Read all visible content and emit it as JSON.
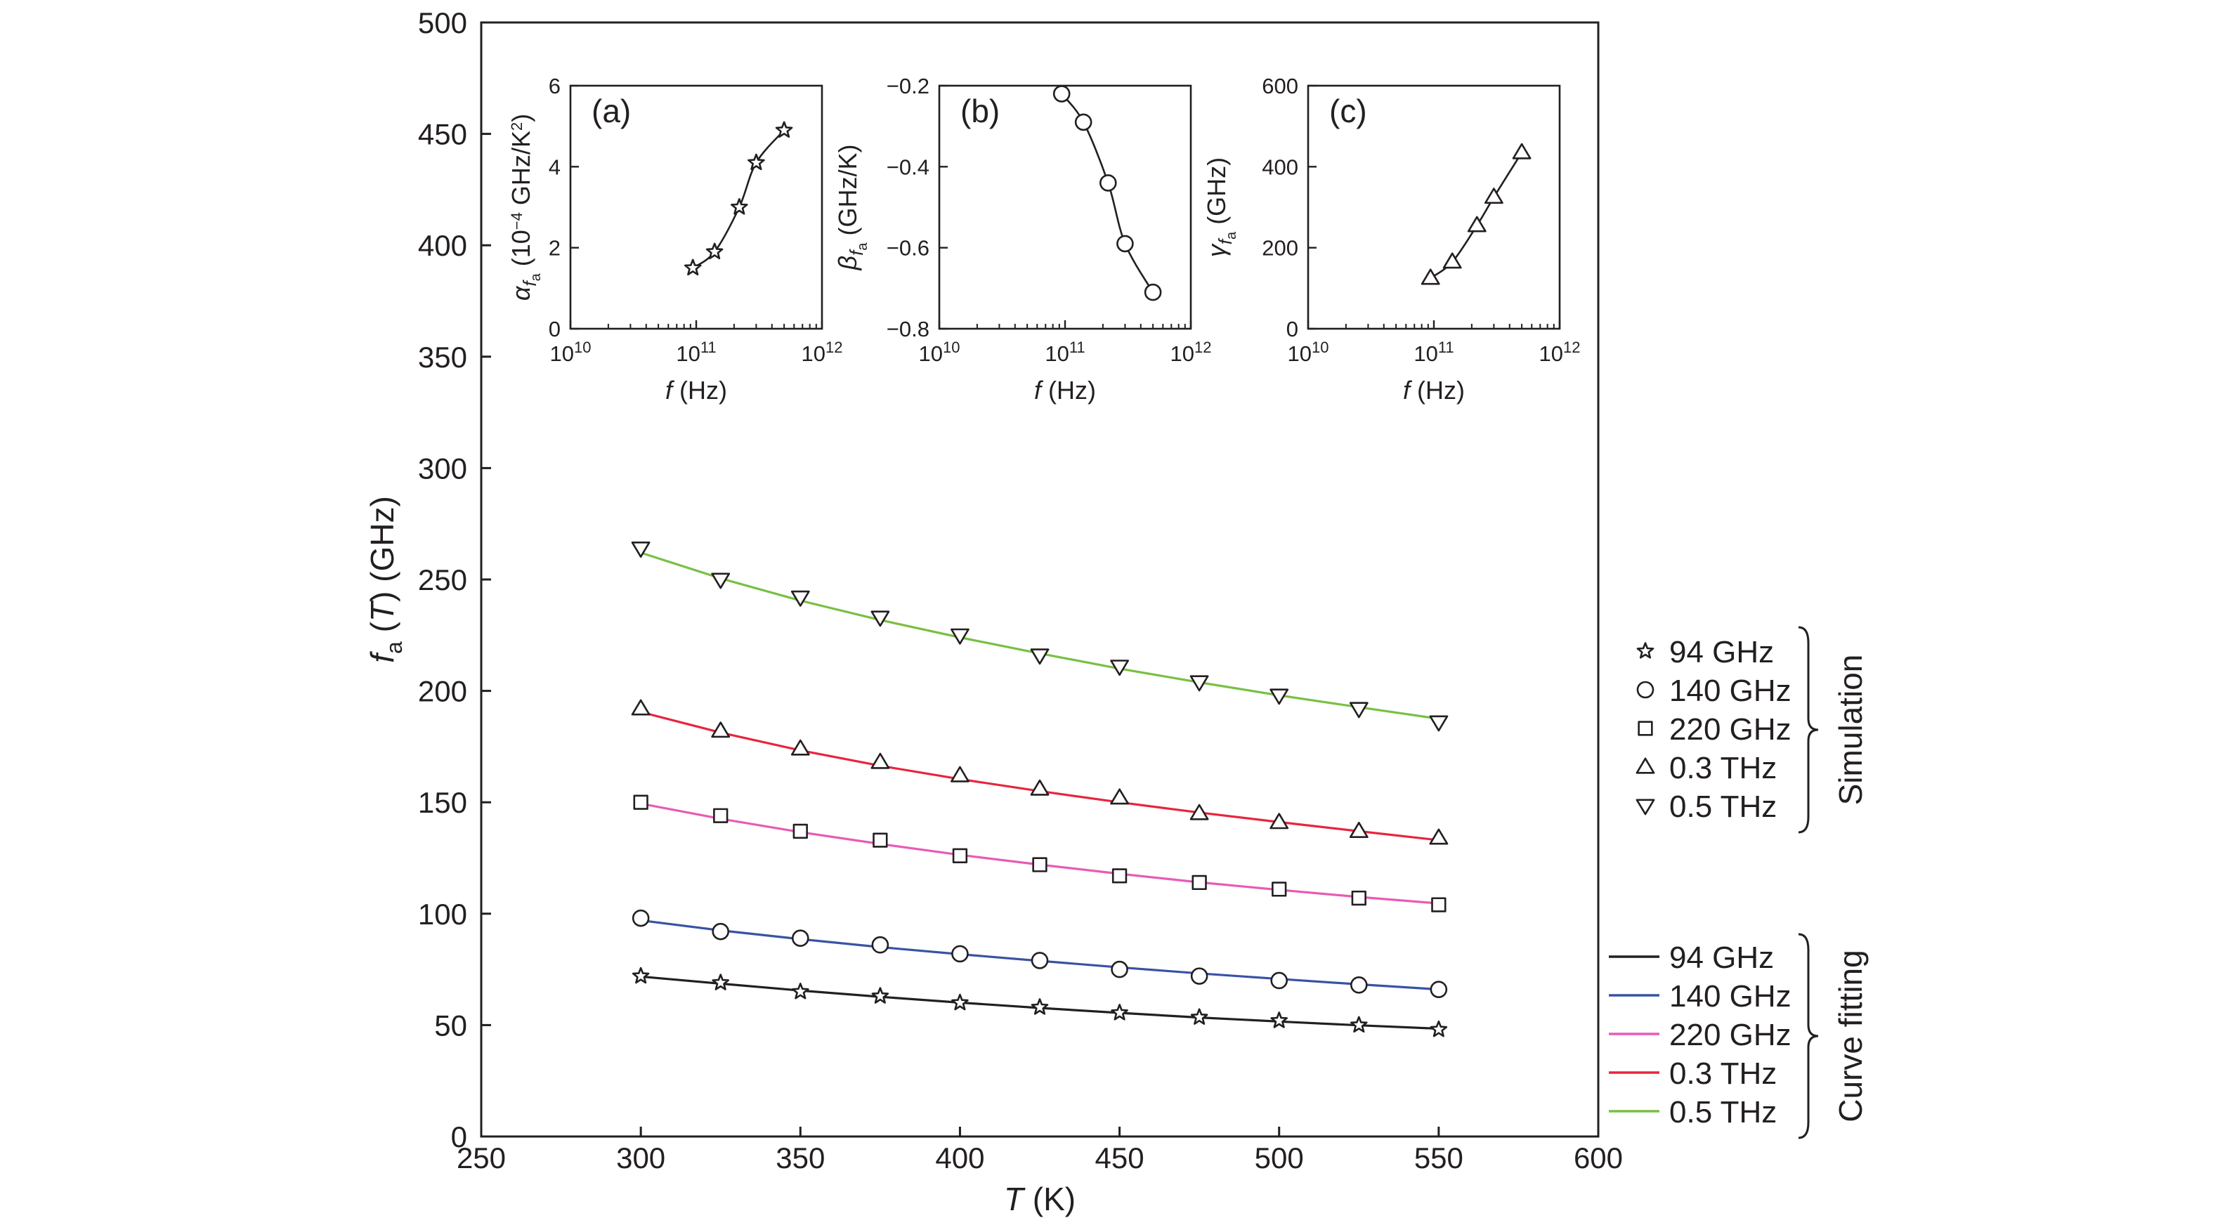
{
  "chart_data": {
    "main": {
      "type": "line",
      "x_axis_title": "T (K)",
      "y_axis_title": "f_a (T) (GHz)",
      "xlabel": {
        "symbol": "T",
        "rest": " (K)"
      },
      "ylabel": {
        "symbol": "f",
        "sub": "a",
        "mid": " (",
        "sym2": "T",
        "rest": ") (GHz)"
      },
      "xlim": [
        250,
        600
      ],
      "ylim": [
        0,
        500
      ],
      "xticks": [
        250,
        300,
        350,
        400,
        450,
        500,
        550,
        600
      ],
      "yticks": [
        0,
        50,
        100,
        150,
        200,
        250,
        300,
        350,
        400,
        450,
        500
      ],
      "x": [
        300,
        325,
        350,
        375,
        400,
        425,
        450,
        475,
        500,
        525,
        550
      ],
      "series": [
        {
          "name": "94 GHz",
          "marker": "star",
          "color": "#231f20",
          "sim": [
            72,
            69,
            65,
            63,
            60,
            58,
            55.5,
            53.5,
            52,
            50,
            48
          ],
          "fit": [
            71.8,
            68.6,
            65.5,
            62.7,
            60.1,
            57.7,
            55.5,
            53.4,
            51.6,
            49.9,
            48.4
          ]
        },
        {
          "name": "140 GHz",
          "marker": "circle",
          "color": "#3853a4",
          "sim": [
            98,
            92,
            89,
            86,
            82,
            79,
            75,
            72,
            70,
            68,
            66
          ],
          "fit": [
            97,
            92.5,
            88.6,
            85,
            81.8,
            78.8,
            75.9,
            73.2,
            70.7,
            68.3,
            66
          ]
        },
        {
          "name": "220 GHz",
          "marker": "square",
          "color": "#e85bb6",
          "sim": [
            150,
            144,
            137,
            133,
            126,
            122,
            117,
            114,
            111,
            107,
            104
          ],
          "fit": [
            149.4,
            142.6,
            136.6,
            131.3,
            126.4,
            122,
            117.9,
            114.1,
            110.7,
            107.5,
            104.6
          ]
        },
        {
          "name": "0.3 THz",
          "marker": "triangle-up",
          "color": "#e8253e",
          "sim": [
            192,
            182,
            174,
            168,
            162,
            156,
            152,
            145,
            141,
            137,
            134
          ],
          "fit": [
            190.5,
            181.3,
            173.3,
            166.4,
            160.4,
            155,
            150,
            145.4,
            141.1,
            137,
            133
          ]
        },
        {
          "name": "0.5 THz",
          "marker": "triangle-down",
          "color": "#78c043",
          "sim": [
            264,
            250,
            242,
            233,
            225,
            216,
            211,
            204,
            198,
            192,
            186
          ],
          "fit": [
            262,
            250.5,
            240.5,
            231.8,
            224,
            216.8,
            210,
            203.8,
            198,
            192.7,
            187.5
          ]
        }
      ],
      "legend": {
        "simulation_title": "Simulation",
        "fitting_title": "Curve fitting",
        "simulation_labels": [
          "94 GHz",
          "140 GHz",
          "220 GHz",
          "0.3 THz",
          "0.5 THz"
        ],
        "fitting_labels": [
          "94 GHz",
          "140 GHz",
          "220 GHz",
          "0.3 THz",
          "0.5 THz"
        ],
        "placement": "right, outside plot"
      }
    },
    "insets": [
      {
        "label": "(a)",
        "type": "line",
        "marker": "star",
        "ylabel": "α_fa (10^-4 GHz/K²)",
        "ylabel_parts": {
          "symbol": "α",
          "sub": "f",
          "subsub": "a",
          "pre": " (10",
          "sup": "−4",
          "post": " GHz/K",
          "sup2": "2",
          "end": ")"
        },
        "xlabel": "f (Hz)",
        "xlabel_parts": {
          "symbol": "f",
          "rest": " (Hz)"
        },
        "xlog": [
          10,
          12
        ],
        "ylim": [
          0,
          6
        ],
        "xtick_base": "10",
        "xtick_exps": [
          "10",
          "11",
          "12"
        ],
        "yticks": [
          "0",
          "2",
          "4",
          "6"
        ],
        "ytick_values": [
          0,
          2,
          4,
          6
        ],
        "x": [
          94000000000.0,
          140000000000.0,
          220000000000.0,
          300000000000.0,
          500000000000.0
        ],
        "y": [
          1.5,
          1.9,
          3.0,
          4.1,
          4.9
        ]
      },
      {
        "label": "(b)",
        "type": "line",
        "marker": "circle",
        "ylabel": "β_fa (GHz/K)",
        "ylabel_parts": {
          "symbol": "β",
          "sub": "f",
          "subsub": "a",
          "rest": " (GHz/K)"
        },
        "xlabel": "f (Hz)",
        "xlabel_parts": {
          "symbol": "f",
          "rest": " (Hz)"
        },
        "xlog": [
          10,
          12
        ],
        "ylim": [
          -0.8,
          -0.2
        ],
        "xtick_base": "10",
        "xtick_exps": [
          "10",
          "11",
          "12"
        ],
        "yticks": [
          "−0.2",
          "−0.4",
          "−0.6",
          "−0.8"
        ],
        "ytick_values": [
          -0.2,
          -0.4,
          -0.6,
          -0.8
        ],
        "x": [
          94000000000.0,
          140000000000.0,
          220000000000.0,
          300000000000.0,
          500000000000.0
        ],
        "y": [
          -0.22,
          -0.29,
          -0.44,
          -0.59,
          -0.71
        ]
      },
      {
        "label": "(c)",
        "type": "line",
        "marker": "triangle-up",
        "ylabel": "γ_fa (GHz)",
        "ylabel_parts": {
          "symbol": "γ",
          "sub": "f",
          "subsub": "a",
          "rest": " (GHz)"
        },
        "xlabel": "f (Hz)",
        "xlabel_parts": {
          "symbol": "f",
          "rest": " (Hz)"
        },
        "xlog": [
          10,
          12
        ],
        "ylim": [
          0,
          600
        ],
        "xtick_base": "10",
        "xtick_exps": [
          "10",
          "11",
          "12"
        ],
        "yticks": [
          "0",
          "200",
          "400",
          "600"
        ],
        "ytick_values": [
          0,
          200,
          400,
          600
        ],
        "x": [
          94000000000.0,
          140000000000.0,
          220000000000.0,
          300000000000.0,
          500000000000.0
        ],
        "y": [
          125,
          165,
          255,
          325,
          435
        ]
      }
    ]
  }
}
